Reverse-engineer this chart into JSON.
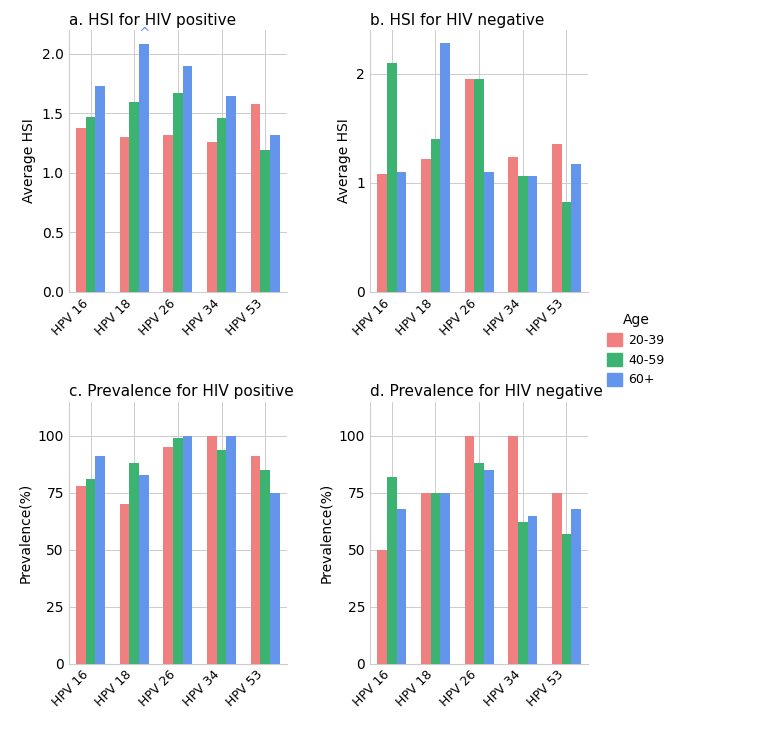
{
  "hpv_types": [
    "HPV 16",
    "HPV 18",
    "HPV 26",
    "HPV 34",
    "HPV 53"
  ],
  "colors": {
    "20-39": "#F08080",
    "40-59": "#3CB371",
    "60+": "#6495ED"
  },
  "legend_labels": [
    "20-39",
    "40-59",
    "60+"
  ],
  "panel_a": {
    "title": "a. HSI for HIV positive",
    "ylabel": "Average HSI",
    "ylim": [
      0,
      2.2
    ],
    "yticks": [
      0.0,
      0.5,
      1.0,
      1.5,
      2.0
    ],
    "data": {
      "20-39": [
        1.38,
        1.3,
        1.32,
        1.26,
        1.58
      ],
      "40-59": [
        1.47,
        1.6,
        1.67,
        1.46,
        1.19
      ],
      "60+": [
        1.73,
        2.08,
        1.9,
        1.65,
        1.32
      ]
    },
    "annotation": {
      "bar_idx": 1,
      "age": "60+",
      "text": "^"
    }
  },
  "panel_b": {
    "title": "b. HSI for HIV negative",
    "ylabel": "Average HSI",
    "ylim": [
      0,
      2.4
    ],
    "yticks": [
      0,
      1,
      2
    ],
    "data": {
      "20-39": [
        1.08,
        1.22,
        1.95,
        1.24,
        1.36
      ],
      "40-59": [
        2.1,
        1.4,
        1.95,
        1.06,
        0.82
      ],
      "60+": [
        1.1,
        2.28,
        1.1,
        1.06,
        1.17
      ]
    }
  },
  "panel_c": {
    "title": "c. Prevalence for HIV positive",
    "ylabel": "Prevalence(%)",
    "ylim": [
      0,
      115
    ],
    "yticks": [
      0,
      25,
      50,
      75,
      100
    ],
    "data": {
      "20-39": [
        78,
        70,
        95,
        100,
        91
      ],
      "40-59": [
        81,
        88,
        99,
        94,
        85
      ],
      "60+": [
        91,
        83,
        100,
        100,
        75
      ]
    }
  },
  "panel_d": {
    "title": "d. Prevalence for HIV negative",
    "ylabel": "Prevalence(%)",
    "ylim": [
      0,
      115
    ],
    "yticks": [
      0,
      25,
      50,
      75,
      100
    ],
    "data": {
      "20-39": [
        50,
        75,
        100,
        100,
        75
      ],
      "40-59": [
        82,
        75,
        88,
        62,
        57
      ],
      "60+": [
        68,
        75,
        85,
        65,
        68
      ]
    }
  }
}
